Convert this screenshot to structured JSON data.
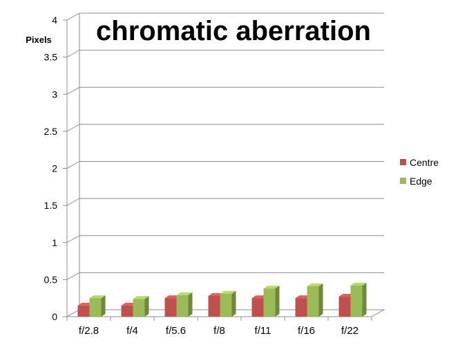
{
  "chart_data": {
    "type": "bar",
    "title": "chromatic aberration",
    "ylabel": "Pixels",
    "xlabel": "",
    "categories": [
      "f/2.8",
      "f/4",
      "f/5.6",
      "f/8",
      "f/11",
      "f/16",
      "f/22"
    ],
    "ylim": [
      0,
      4
    ],
    "yticks": [
      0,
      0.5,
      1,
      1.5,
      2,
      2.5,
      3,
      3.5,
      4
    ],
    "ytick_labels": [
      "0",
      "0.5",
      "1",
      "1.5",
      "2",
      "2.5",
      "3",
      "3.5",
      "4"
    ],
    "grid": true,
    "legend_position": "right",
    "style": "3d-clustered",
    "series": [
      {
        "name": "Centre",
        "color": "#c0504d",
        "values": [
          0.15,
          0.15,
          0.25,
          0.28,
          0.25,
          0.25,
          0.27
        ]
      },
      {
        "name": "Edge",
        "color": "#9bbb59",
        "values": [
          0.25,
          0.24,
          0.29,
          0.31,
          0.38,
          0.41,
          0.42
        ]
      }
    ]
  }
}
